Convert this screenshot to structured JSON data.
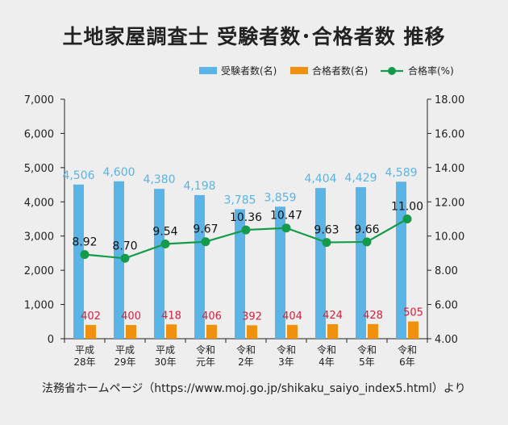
{
  "title": "土地家屋調査士 受験者数･合格者数 推移",
  "source": "法務省ホームページ（https://www.moj.go.jp/shikaku_saiyo_index5.html）より",
  "colors": {
    "examinees": "#5ab4e5",
    "passers": "#f0900f",
    "rate": "#139b4b",
    "examinee_label": "#5ab4e5",
    "passer_label": "#d41f3c"
  },
  "chart_data": {
    "type": "bar",
    "categories": [
      [
        "平成",
        "28年"
      ],
      [
        "平成",
        "29年"
      ],
      [
        "平成",
        "30年"
      ],
      [
        "令和",
        "元年"
      ],
      [
        "令和",
        "2年"
      ],
      [
        "令和",
        "3年"
      ],
      [
        "令和",
        "4年"
      ],
      [
        "令和",
        "5年"
      ],
      [
        "令和",
        "6年"
      ]
    ],
    "series": [
      {
        "name": "受験者数(名)",
        "type": "bar",
        "axis": "left",
        "values": [
          4506,
          4600,
          4380,
          4198,
          3785,
          3859,
          4404,
          4429,
          4589
        ],
        "labels": [
          "4,506",
          "4,600",
          "4,380",
          "4,198",
          "3,785",
          "3,859",
          "4,404",
          "4,429",
          "4,589"
        ]
      },
      {
        "name": "合格者数(名)",
        "type": "bar",
        "axis": "left",
        "values": [
          402,
          400,
          418,
          406,
          392,
          404,
          424,
          428,
          505
        ],
        "labels": [
          "402",
          "400",
          "418",
          "406",
          "392",
          "404",
          "424",
          "428",
          "505"
        ]
      },
      {
        "name": "合格率(%)",
        "type": "line",
        "axis": "right",
        "values": [
          8.92,
          8.7,
          9.54,
          9.67,
          10.36,
          10.47,
          9.63,
          9.66,
          11.0
        ],
        "labels": [
          "8.92",
          "8.70",
          "9.54",
          "9.67",
          "10.36",
          "10.47",
          "9.63",
          "9.66",
          "11.00"
        ]
      }
    ],
    "y_left": {
      "range": [
        0,
        7000
      ],
      "ticks": [
        "0",
        "1,000",
        "2,000",
        "3,000",
        "4,000",
        "5,000",
        "6,000",
        "7,000"
      ]
    },
    "y_right": {
      "range": [
        4,
        18
      ],
      "ticks": [
        "4.00",
        "6.00",
        "8.00",
        "10.00",
        "12.00",
        "14.00",
        "16.00",
        "18.00"
      ]
    },
    "legend_position": "top-right",
    "grid": false
  }
}
